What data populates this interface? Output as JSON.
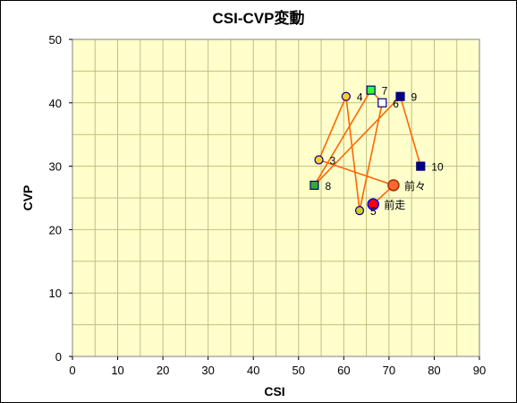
{
  "chart_data": {
    "type": "scatter",
    "title": "CSI-CVP変動",
    "xlabel": "CSI",
    "ylabel": "CVP",
    "xlim": [
      0,
      90
    ],
    "ylim": [
      0,
      50
    ],
    "x_ticks": [
      "0",
      "10",
      "20",
      "30",
      "40",
      "50",
      "60",
      "70",
      "80",
      "90"
    ],
    "y_ticks": [
      "0",
      "10",
      "20",
      "30",
      "40",
      "50"
    ],
    "grid": true,
    "minor_grid_x": 2,
    "minor_grid_y": 2,
    "colors": {
      "plot_bg": "#ffffcc",
      "grid": "#bfbf7f",
      "line": "#ff6600"
    },
    "points": [
      {
        "label": "前走",
        "x": 66.5,
        "y": 24,
        "marker": "circle-large",
        "fill": "#ff0000",
        "stroke": "#0000ff"
      },
      {
        "label": "前々",
        "x": 71,
        "y": 27,
        "marker": "circle-large",
        "fill": "#ff6633",
        "stroke": "#993300"
      },
      {
        "label": "3",
        "x": 54.5,
        "y": 31,
        "marker": "circle",
        "fill": "#ffcc33",
        "stroke": "#000080"
      },
      {
        "label": "4",
        "x": 60.5,
        "y": 41,
        "marker": "circle",
        "fill": "#ffcc33",
        "stroke": "#000080"
      },
      {
        "label": "5",
        "x": 63.5,
        "y": 23,
        "marker": "circle",
        "fill": "#cccc33",
        "stroke": "#000080"
      },
      {
        "label": "6",
        "x": 68.5,
        "y": 40,
        "marker": "square",
        "fill": "#ffffff",
        "stroke": "#000080"
      },
      {
        "label": "7",
        "x": 66,
        "y": 42,
        "marker": "square",
        "fill": "#33ff33",
        "stroke": "#000080"
      },
      {
        "label": "8",
        "x": 53.5,
        "y": 27,
        "marker": "square",
        "fill": "#33aa33",
        "stroke": "#000080"
      },
      {
        "label": "9",
        "x": 72.5,
        "y": 41,
        "marker": "square",
        "fill": "#000080",
        "stroke": "#000080"
      },
      {
        "label": "10",
        "x": 77,
        "y": 30,
        "marker": "square",
        "fill": "#000080",
        "stroke": "#000080"
      }
    ]
  }
}
